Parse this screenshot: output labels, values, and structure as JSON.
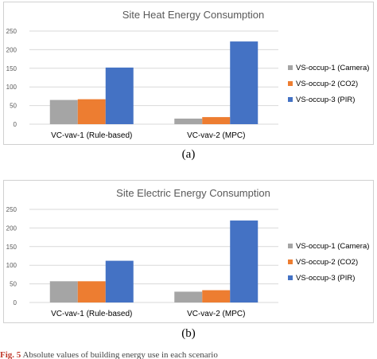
{
  "chart_data": [
    {
      "type": "bar",
      "title": "Site Heat Energy Consumption",
      "categories": [
        "VC-vav-1 (Rule-based)",
        "VC-vav-2 (MPC)"
      ],
      "series": [
        {
          "name": "VS-occup-1 (Camera)",
          "values": [
            65,
            15
          ],
          "color": "#a5a5a5"
        },
        {
          "name": "VS-occup-2 (CO2)",
          "values": [
            67,
            19
          ],
          "color": "#ed7d31"
        },
        {
          "name": "VS-occup-3 (PIR)",
          "values": [
            152,
            222
          ],
          "color": "#4472c4"
        }
      ],
      "xlabel": "",
      "ylabel": "",
      "ylim": [
        0,
        250
      ],
      "yticks": [
        0,
        50,
        100,
        150,
        200,
        250
      ],
      "grid": true,
      "legend": "right"
    },
    {
      "type": "bar",
      "title": "Site Electric Energy Consumption",
      "categories": [
        "VC-vav-1 (Rule-based)",
        "VC-vav-2 (MPC)"
      ],
      "series": [
        {
          "name": "VS-occup-1 (Camera)",
          "values": [
            57,
            29
          ],
          "color": "#a5a5a5"
        },
        {
          "name": "VS-occup-2 (CO2)",
          "values": [
            57,
            33
          ],
          "color": "#ed7d31"
        },
        {
          "name": "VS-occup-3 (PIR)",
          "values": [
            112,
            220
          ],
          "color": "#4472c4"
        }
      ],
      "xlabel": "",
      "ylabel": "",
      "ylim": [
        0,
        250
      ],
      "yticks": [
        0,
        50,
        100,
        150,
        200,
        250
      ],
      "grid": true,
      "legend": "right"
    }
  ],
  "captions": [
    "(a)",
    "(b)"
  ],
  "footer": {
    "fig_label": "Fig. 5",
    "text": "Absolute values of building energy use in each scenario"
  }
}
